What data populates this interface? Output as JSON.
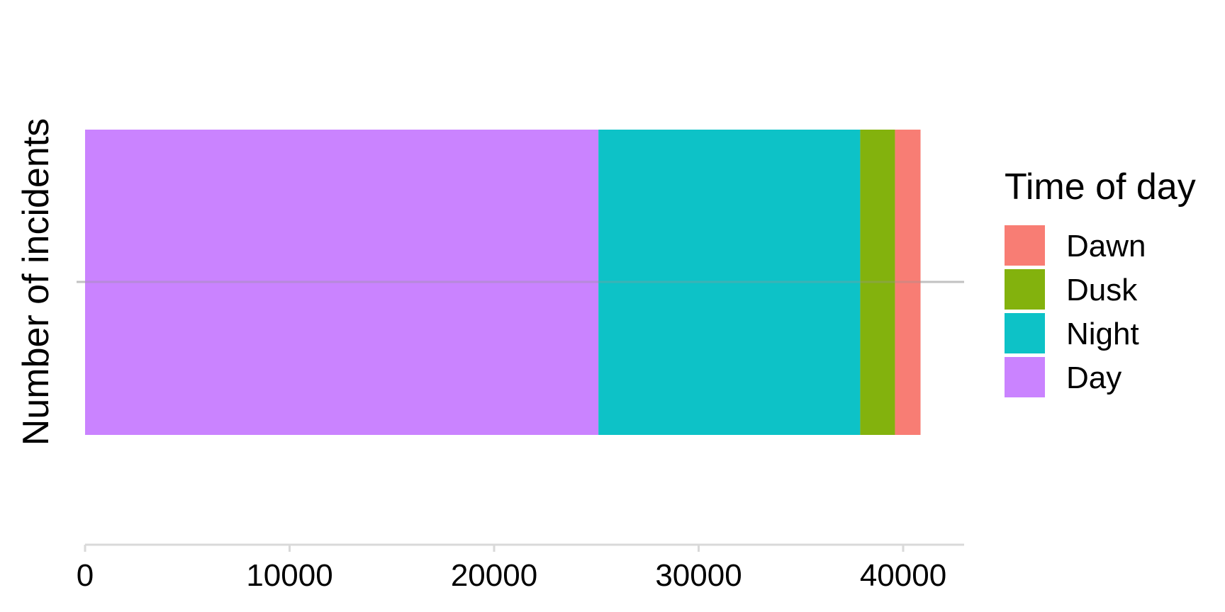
{
  "chart_data": {
    "type": "bar",
    "orientation": "horizontal",
    "stacked": true,
    "categories": [
      ""
    ],
    "series": [
      {
        "name": "Day",
        "values": [
          25100
        ],
        "color": "#C77CFF"
      },
      {
        "name": "Night",
        "values": [
          12800
        ],
        "color": "#00BFC4"
      },
      {
        "name": "Dusk",
        "values": [
          1700
        ],
        "color": "#7CAE00"
      },
      {
        "name": "Dawn",
        "values": [
          1250
        ],
        "color": "#F8766D"
      }
    ],
    "ylabel": "Number of incidents",
    "xlim": [
      0,
      43000
    ],
    "xticks": [
      0,
      10000,
      20000,
      30000,
      40000
    ],
    "xtick_labels": [
      "0",
      "10000",
      "20000",
      "30000",
      "40000"
    ],
    "grid": true,
    "legend": {
      "title": "Time of day",
      "position": "right",
      "entries": [
        "Dawn",
        "Dusk",
        "Night",
        "Day"
      ]
    },
    "colors": {
      "axis": "#D9D9D9",
      "grid": "#D9D9D9"
    }
  }
}
